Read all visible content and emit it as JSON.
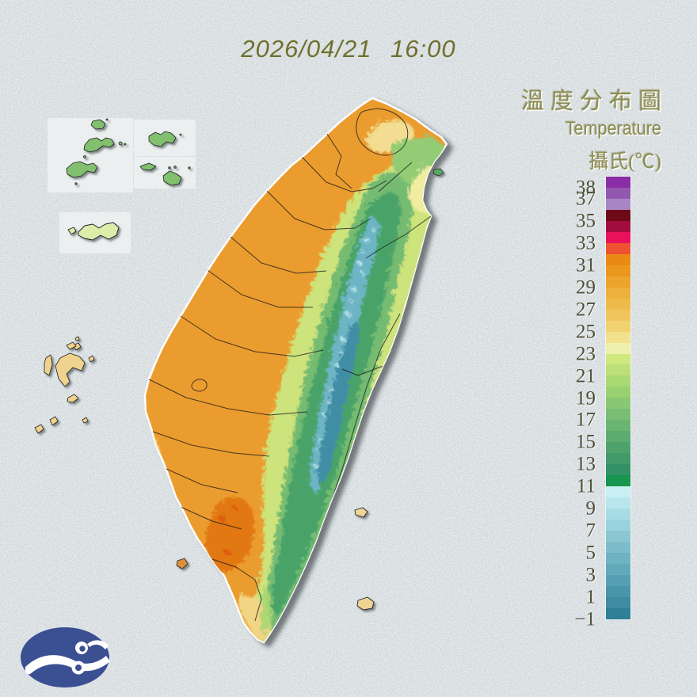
{
  "title": {
    "datetime": "2026/04/21 16:00"
  },
  "legend": {
    "title_zh": "溫度分布圖",
    "title_en": "Temperature",
    "unit_label": "攝氏(℃)"
  },
  "scale": {
    "orientation": "vertical",
    "top_value": 39,
    "bottom_value": -1,
    "ticks": [
      {
        "value": 38,
        "label": "38"
      },
      {
        "value": 37,
        "label": "37"
      },
      {
        "value": 35,
        "label": "35"
      },
      {
        "value": 33,
        "label": "33"
      },
      {
        "value": 31,
        "label": "31"
      },
      {
        "value": 29,
        "label": "29"
      },
      {
        "value": 27,
        "label": "27"
      },
      {
        "value": 25,
        "label": "25"
      },
      {
        "value": 23,
        "label": "23"
      },
      {
        "value": 21,
        "label": "21"
      },
      {
        "value": 19,
        "label": "19"
      },
      {
        "value": 17,
        "label": "17"
      },
      {
        "value": 15,
        "label": "15"
      },
      {
        "value": 13,
        "label": "13"
      },
      {
        "value": 11,
        "label": "11"
      },
      {
        "value": 9,
        "label": "9"
      },
      {
        "value": 7,
        "label": "7"
      },
      {
        "value": 5,
        "label": "5"
      },
      {
        "value": 3,
        "label": "3"
      },
      {
        "value": 1,
        "label": "1"
      },
      {
        "value": -1,
        "label": "−1"
      }
    ],
    "segments": [
      {
        "from": 39,
        "to": 38,
        "color": "#8a2da6"
      },
      {
        "from": 38,
        "to": 37,
        "color": "#9257ae"
      },
      {
        "from": 37,
        "to": 36,
        "color": "#a886c6"
      },
      {
        "from": 36,
        "to": 35,
        "color": "#6e0a18"
      },
      {
        "from": 35,
        "to": 34,
        "color": "#a30c3e"
      },
      {
        "from": 34,
        "to": 33,
        "color": "#e8115a"
      },
      {
        "from": 33,
        "to": 32,
        "color": "#ef5233"
      },
      {
        "from": 32,
        "to": 31,
        "color": "#ea8a12"
      },
      {
        "from": 31,
        "to": 30,
        "color": "#eb961d"
      },
      {
        "from": 30,
        "to": 29,
        "color": "#eca42c"
      },
      {
        "from": 29,
        "to": 28,
        "color": "#edb03c"
      },
      {
        "from": 28,
        "to": 27,
        "color": "#eebb4b"
      },
      {
        "from": 27,
        "to": 26,
        "color": "#f0c65c"
      },
      {
        "from": 26,
        "to": 25,
        "color": "#f1d271"
      },
      {
        "from": 25,
        "to": 24,
        "color": "#f3e08c"
      },
      {
        "from": 24,
        "to": 23,
        "color": "#edf1ab"
      },
      {
        "from": 23,
        "to": 22,
        "color": "#cee87e"
      },
      {
        "from": 22,
        "to": 21,
        "color": "#bce077"
      },
      {
        "from": 21,
        "to": 20,
        "color": "#aad873"
      },
      {
        "from": 20,
        "to": 19,
        "color": "#98d072"
      },
      {
        "from": 19,
        "to": 18,
        "color": "#88c773"
      },
      {
        "from": 18,
        "to": 17,
        "color": "#79be72"
      },
      {
        "from": 17,
        "to": 16,
        "color": "#6ab571"
      },
      {
        "from": 16,
        "to": 15,
        "color": "#5cac70"
      },
      {
        "from": 15,
        "to": 14,
        "color": "#4ea36d"
      },
      {
        "from": 14,
        "to": 13,
        "color": "#409a69"
      },
      {
        "from": 13,
        "to": 12,
        "color": "#329165"
      },
      {
        "from": 12,
        "to": 11,
        "color": "#16964e"
      },
      {
        "from": 11,
        "to": 10,
        "color": "#c9eff3"
      },
      {
        "from": 10,
        "to": 9,
        "color": "#b8e6ec"
      },
      {
        "from": 9,
        "to": 8,
        "color": "#a8dce4"
      },
      {
        "from": 8,
        "to": 7,
        "color": "#99d2dc"
      },
      {
        "from": 7,
        "to": 6,
        "color": "#8bc7d3"
      },
      {
        "from": 6,
        "to": 5,
        "color": "#7dbdcb"
      },
      {
        "from": 5,
        "to": 4,
        "color": "#6fb3c3"
      },
      {
        "from": 4,
        "to": 3,
        "color": "#62a9bb"
      },
      {
        "from": 3,
        "to": 2,
        "color": "#55a0b2"
      },
      {
        "from": 2,
        "to": 1,
        "color": "#4996aa"
      },
      {
        "from": 1,
        "to": 0,
        "color": "#3d8ca1"
      },
      {
        "from": 0,
        "to": -1,
        "color": "#2f8097"
      }
    ]
  },
  "theme": {
    "page_bg": "#d2d9dc",
    "inset_box_bg": "#ecefef",
    "title_color": "#70702e",
    "legend_text_color": "#8d8d50",
    "tick_label_color": "#4e4e36",
    "logo_color": "#3b4f93",
    "coastline_color": "#ffffff",
    "county_border_color": "#1c1c1c"
  }
}
